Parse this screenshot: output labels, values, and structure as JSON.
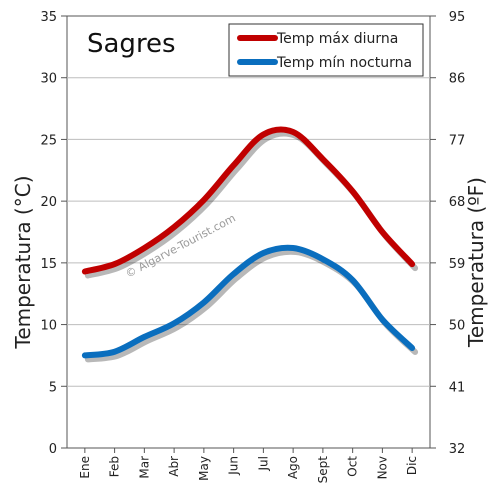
{
  "chart_data": {
    "type": "line",
    "title": "Sagres",
    "watermark": "© Algarve-Tourist.com",
    "categories": [
      "Ene",
      "Feb",
      "Mar",
      "Abr",
      "May",
      "Jun",
      "Jul",
      "Ago",
      "Sept",
      "Oct",
      "Nov",
      "Dic"
    ],
    "ylabel": "Temperatura (°C)",
    "ylabel_right": "Temperatura (ºF)",
    "ylim": [
      0,
      35
    ],
    "yticks": [
      0,
      5,
      10,
      15,
      20,
      25,
      30,
      35
    ],
    "yticks_right": [
      32,
      41,
      50,
      59,
      68,
      77,
      86,
      95
    ],
    "grid": "horizontal",
    "legend_position": "top-right",
    "series": [
      {
        "name": "Temp máx diurna",
        "color": "#c00000",
        "values": [
          14.3,
          14.9,
          16.2,
          17.9,
          20.1,
          22.9,
          25.4,
          25.6,
          23.4,
          20.8,
          17.5,
          14.9
        ]
      },
      {
        "name": "Temp mín nocturna",
        "color": "#0a6ebe",
        "values": [
          7.5,
          7.8,
          9.0,
          10.1,
          11.8,
          14.1,
          15.8,
          16.2,
          15.3,
          13.6,
          10.4,
          8.1
        ]
      }
    ]
  }
}
